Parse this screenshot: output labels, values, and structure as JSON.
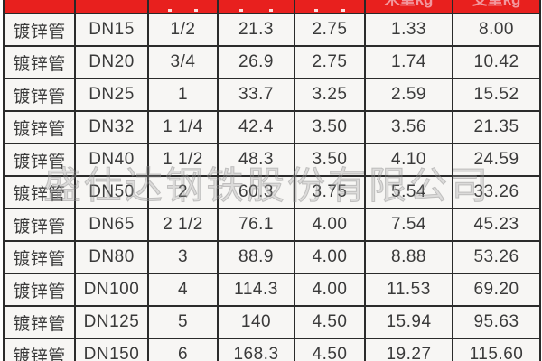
{
  "colors": {
    "header_background": "#e8201e",
    "header_text": "#f2989e",
    "cell_background": "#f7f6f4",
    "cell_text": "#3a3a3a",
    "border": "#2b2b2b",
    "watermark": "#969696"
  },
  "header": {
    "clipped_labels": {
      "m_weight": "米重kg",
      "pc_weight": "支重kg"
    }
  },
  "watermark": {
    "text": "盛仕达钢铁股份有限公司"
  },
  "table": {
    "column_keys": [
      "product",
      "dn",
      "inch",
      "od",
      "wall",
      "m_weight",
      "pc_weight"
    ],
    "rows": [
      {
        "product": "镀锌管",
        "dn": "DN15",
        "inch": "1/2",
        "od": "21.3",
        "wall": "2.75",
        "m_weight": "1.33",
        "pc_weight": "8.00"
      },
      {
        "product": "镀锌管",
        "dn": "DN20",
        "inch": "3/4",
        "od": "26.9",
        "wall": "2.75",
        "m_weight": "1.74",
        "pc_weight": "10.42"
      },
      {
        "product": "镀锌管",
        "dn": "DN25",
        "inch": "1",
        "od": "33.7",
        "wall": "3.25",
        "m_weight": "2.59",
        "pc_weight": "15.52"
      },
      {
        "product": "镀锌管",
        "dn": "DN32",
        "inch": "1 1/4",
        "od": "42.4",
        "wall": "3.50",
        "m_weight": "3.56",
        "pc_weight": "21.35"
      },
      {
        "product": "镀锌管",
        "dn": "DN40",
        "inch": "1 1/2",
        "od": "48.3",
        "wall": "3.50",
        "m_weight": "4.10",
        "pc_weight": "24.59"
      },
      {
        "product": "镀锌管",
        "dn": "DN50",
        "inch": "2",
        "od": "60.3",
        "wall": "3.75",
        "m_weight": "5.54",
        "pc_weight": "33.26"
      },
      {
        "product": "镀锌管",
        "dn": "DN65",
        "inch": "2 1/2",
        "od": "76.1",
        "wall": "4.00",
        "m_weight": "7.54",
        "pc_weight": "45.23"
      },
      {
        "product": "镀锌管",
        "dn": "DN80",
        "inch": "3",
        "od": "88.9",
        "wall": "4.00",
        "m_weight": "8.88",
        "pc_weight": "53.26"
      },
      {
        "product": "镀锌管",
        "dn": "DN100",
        "inch": "4",
        "od": "114.3",
        "wall": "4.00",
        "m_weight": "11.53",
        "pc_weight": "69.20"
      },
      {
        "product": "镀锌管",
        "dn": "DN125",
        "inch": "5",
        "od": "140",
        "wall": "4.50",
        "m_weight": "15.94",
        "pc_weight": "95.63"
      },
      {
        "product": "镀锌管",
        "dn": "DN150",
        "inch": "6",
        "od": "168.3",
        "wall": "4.50",
        "m_weight": "19.27",
        "pc_weight": "115.60"
      }
    ]
  }
}
